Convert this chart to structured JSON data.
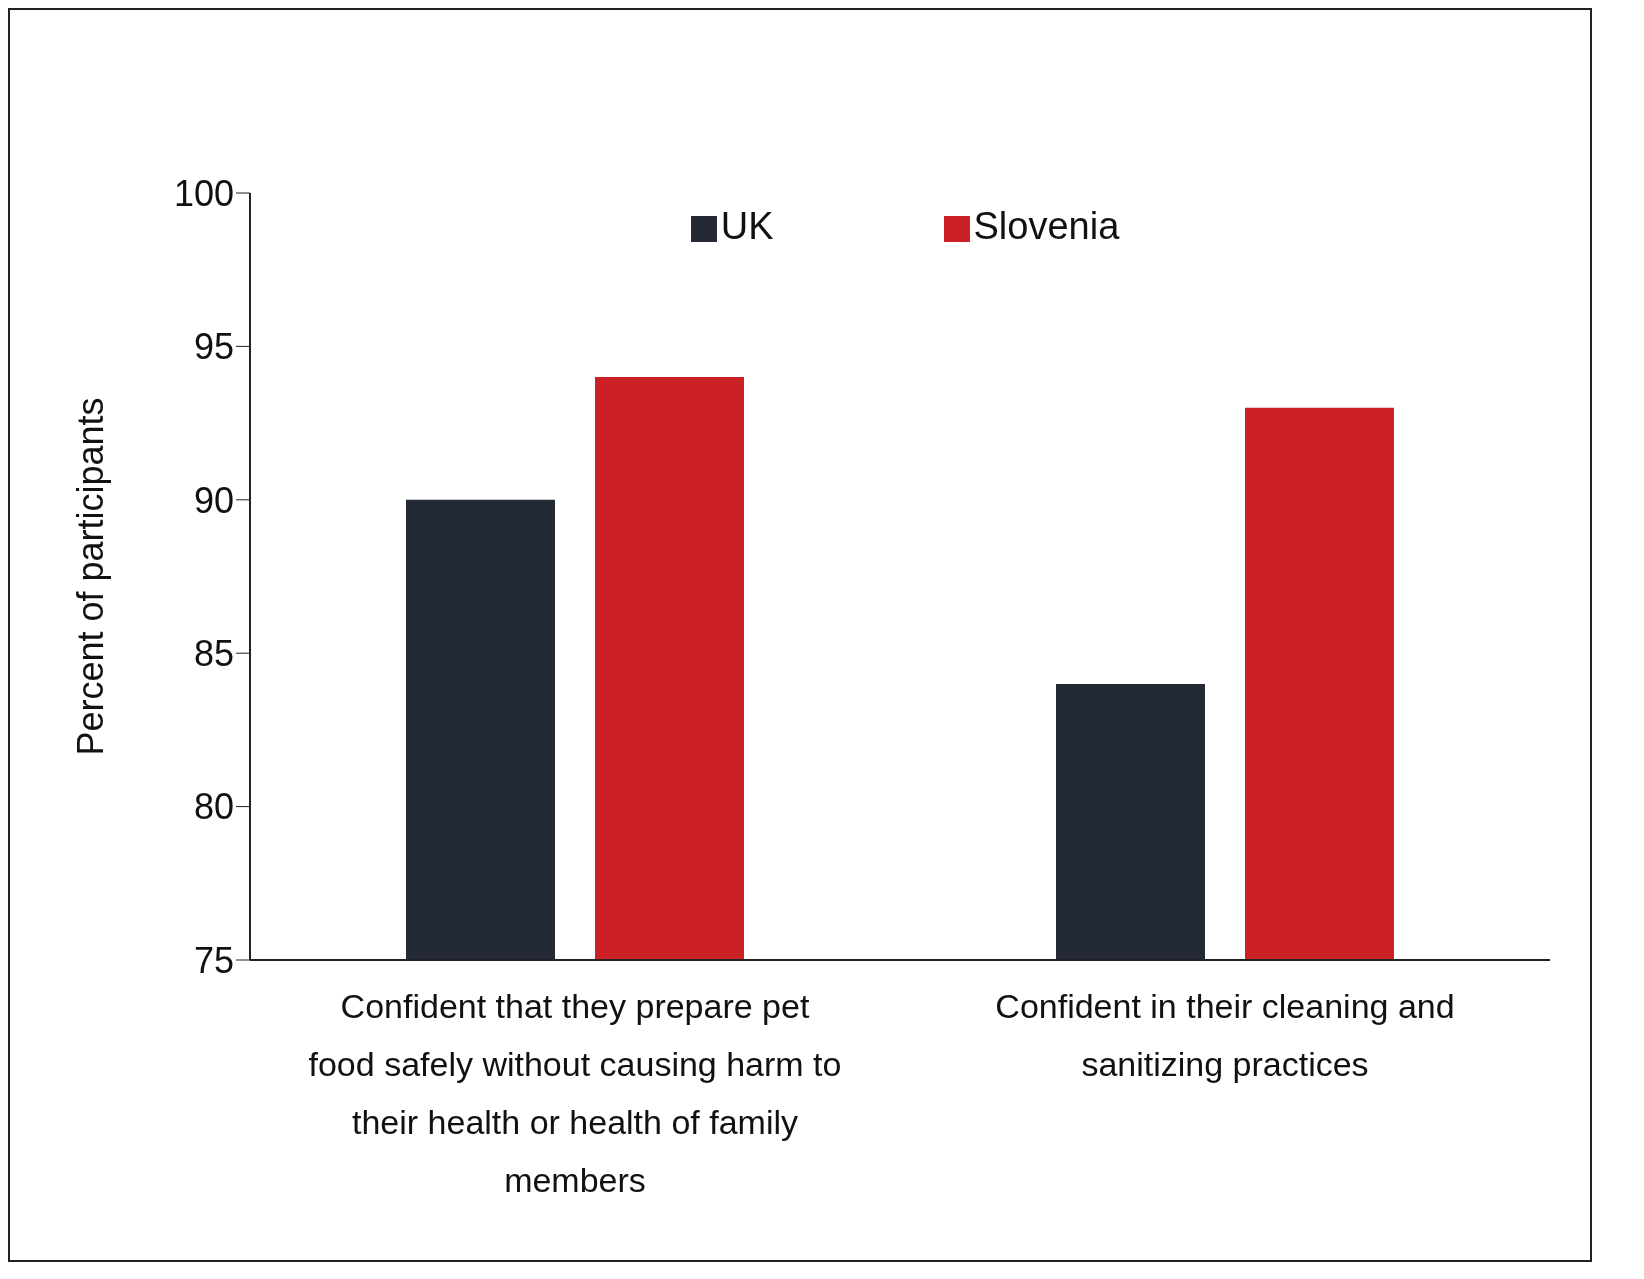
{
  "chart_data": {
    "type": "bar",
    "ylabel": "Percent of participants",
    "categories": [
      "Confident that they prepare pet food safely without causing harm to their health or health of family members",
      "Confident in their cleaning and sanitizing practices"
    ],
    "series": [
      {
        "name": "UK",
        "color": "#232a36",
        "values": [
          90,
          84
        ]
      },
      {
        "name": "Slovenia",
        "color": "#cc2027",
        "values": [
          94,
          93
        ]
      }
    ],
    "ylim": [
      75,
      100
    ],
    "yticks": [
      75,
      80,
      85,
      90,
      95,
      100
    ],
    "legend": "top"
  }
}
